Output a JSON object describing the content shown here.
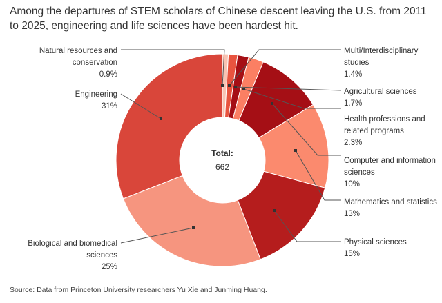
{
  "chart_data": {
    "type": "pie",
    "donut": true,
    "title": "Among the departures of STEM scholars of Chinese descent leaving the U.S. from 2011 to 2025, engineering and life sciences have been hardest hit.",
    "center_label": "Total",
    "center_value": "662",
    "source": "Source: Data from Princeton University researchers Yu Xie and Junming Huang.",
    "slices": [
      {
        "name": "Natural resources and conservation",
        "value": 0.9,
        "label": "0.9%",
        "color": "#f8c3b3"
      },
      {
        "name": "Multi/Interdisciplinary studies",
        "value": 1.4,
        "label": "1.4%",
        "color": "#e8543f"
      },
      {
        "name": "Agricultural sciences",
        "value": 1.7,
        "label": "1.7%",
        "color": "#a50f15"
      },
      {
        "name": "Health professions and related programs",
        "value": 2.3,
        "label": "2.3%",
        "color": "#fb7f63"
      },
      {
        "name": "Computer and information sciences",
        "value": 10,
        "label": "10%",
        "color": "#a50f15"
      },
      {
        "name": "Mathematics and statistics",
        "value": 13,
        "label": "13%",
        "color": "#fb8a6e"
      },
      {
        "name": "Physical sciences",
        "value": 15,
        "label": "15%",
        "color": "#b51d1d"
      },
      {
        "name": "Biological and biomedical sciences",
        "value": 25,
        "label": "25%",
        "color": "#f6957f"
      },
      {
        "name": "Engineering",
        "value": 31,
        "label": "31%",
        "color": "#d9463a"
      }
    ]
  }
}
